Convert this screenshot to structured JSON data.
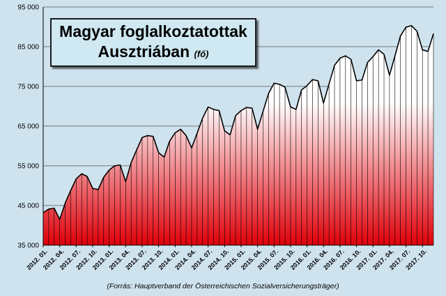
{
  "chart_data": {
    "type": "area",
    "title_line1": "Magyar foglalkoztatottak",
    "title_line2": "Ausztriában",
    "title_unit": "(fő)",
    "source": "(Forrás:  Hauptverband der Österreichischen  Sozialversicherungsträger)",
    "ylim": [
      35000,
      95000
    ],
    "yticks": [
      35000,
      45000,
      55000,
      65000,
      75000,
      85000,
      95000
    ],
    "ytick_labels": [
      "35 000",
      "45 000",
      "55 000",
      "65 000",
      "75 000",
      "85 000",
      "95 000"
    ],
    "x_tick_labels": [
      "2012. 01.",
      "2012. 04.",
      "2012. 07.",
      "2012. 10.",
      "2013. 01.",
      "2013. 04.",
      "2013. 07.",
      "2013. 10.",
      "2014. 01.",
      "2014. 04.",
      "2014. 07.",
      "2014. 10.",
      "2015. 01.",
      "2015. 04.",
      "2015. 07.",
      "2015. 10.",
      "2016. 01.",
      "2016. 04.",
      "2016. 07.",
      "2016. 10.",
      "2017. 01.",
      "2017. 04.",
      "2017. 07.",
      "2017. 10."
    ],
    "start": "2012. 01.",
    "end": "2017. 12.",
    "values": [
      43200,
      44100,
      44300,
      41500,
      45600,
      48800,
      51700,
      53000,
      52300,
      49300,
      49000,
      52100,
      53900,
      55000,
      55200,
      51000,
      55800,
      59000,
      62100,
      62600,
      62400,
      58300,
      57200,
      61200,
      63300,
      64200,
      62600,
      59500,
      63200,
      67000,
      69800,
      69200,
      68900,
      63800,
      62800,
      67600,
      68900,
      69700,
      69500,
      64200,
      68700,
      73200,
      75800,
      75500,
      74800,
      69800,
      69200,
      74100,
      75200,
      76700,
      76400,
      70800,
      75600,
      80300,
      82100,
      82700,
      81800,
      76400,
      76600,
      81000,
      82500,
      84200,
      83100,
      77800,
      82700,
      87700,
      89900,
      90300,
      88900,
      84200,
      83800,
      88300
    ],
    "grid": "horizontal",
    "legend": "none",
    "colors": {
      "background": "#cfe3ee",
      "fill_top": "#ffffff",
      "fill_bottom": "#e0000a",
      "line": "#000000"
    }
  }
}
